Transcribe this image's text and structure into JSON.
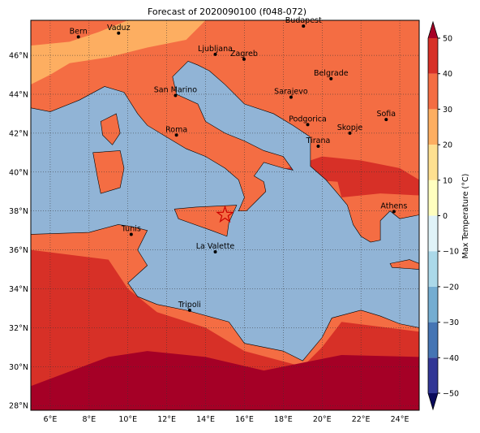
{
  "map": {
    "title": "Forecast of 2020090100 (f048-072)",
    "lon_ticks": [
      {
        "value": 6,
        "label": "6°E"
      },
      {
        "value": 8,
        "label": "8°E"
      },
      {
        "value": 10,
        "label": "10°E"
      },
      {
        "value": 12,
        "label": "12°E"
      },
      {
        "value": 14,
        "label": "14°E"
      },
      {
        "value": 16,
        "label": "16°E"
      },
      {
        "value": 18,
        "label": "18°E"
      },
      {
        "value": 20,
        "label": "20°E"
      },
      {
        "value": 22,
        "label": "22°E"
      },
      {
        "value": 24,
        "label": "24°E"
      }
    ],
    "lat_ticks": [
      {
        "value": 28,
        "label": "28°N"
      },
      {
        "value": 30,
        "label": "30°N"
      },
      {
        "value": 32,
        "label": "32°N"
      },
      {
        "value": 34,
        "label": "34°N"
      },
      {
        "value": 36,
        "label": "36°N"
      },
      {
        "value": 38,
        "label": "38°N"
      },
      {
        "value": 40,
        "label": "40°N"
      },
      {
        "value": 42,
        "label": "42°N"
      },
      {
        "value": 44,
        "label": "44°N"
      },
      {
        "value": 46,
        "label": "46°N"
      }
    ],
    "cities": [
      "Bern",
      "Vaduz",
      "Budapest",
      "Ljubljana",
      "Zagreb",
      "Belgrade",
      "San Marino",
      "Sarajevo",
      "Sofia",
      "Podgorica",
      "Skopje",
      "Roma",
      "Tirana",
      "Athens",
      "Tunis",
      "La Valette",
      "Tripoli"
    ]
  },
  "colorbar": {
    "label": "Max Temperature (°C)",
    "ticks": [
      {
        "value": -50,
        "label": "−50"
      },
      {
        "value": -40,
        "label": "−40"
      },
      {
        "value": -30,
        "label": "−30"
      },
      {
        "value": -20,
        "label": "−20"
      },
      {
        "value": -10,
        "label": "−10"
      },
      0,
      10,
      20,
      30,
      40,
      50
    ],
    "colors": [
      "#313695",
      "#4575b4",
      "#74add1",
      "#abd9e9",
      "#e0f3f8",
      "#ffffbf",
      "#fee090",
      "#fdae61",
      "#f46d43",
      "#d73027"
    ],
    "under_color": "#0a0a5a",
    "over_color": "#a50026"
  }
}
